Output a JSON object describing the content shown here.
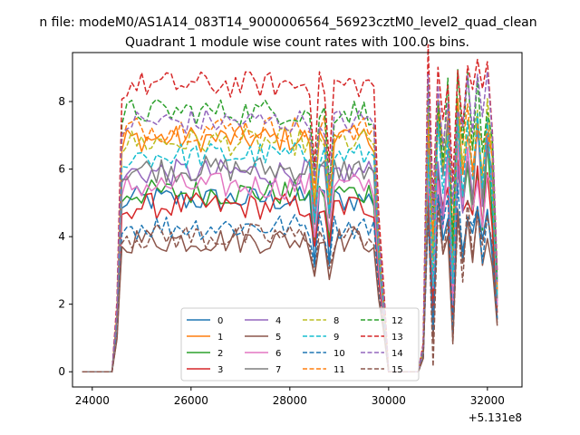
{
  "suptitle": "n file: modeM0/AS1A14_083T14_9000006564_56923cztM0_level2_quad_clean",
  "chart_data": {
    "type": "line",
    "title": "Quadrant 1 module wise count rates with 100.0s bins.",
    "xlabel": "",
    "ylabel": "",
    "x_offset_label": "+5.131e8",
    "xlim": [
      23600,
      32700
    ],
    "ylim": [
      -0.45,
      9.45
    ],
    "xticks": [
      24000,
      26000,
      28000,
      30000,
      32000
    ],
    "xtick_labels": [
      "24000",
      "26000",
      "28000",
      "30000",
      "32000"
    ],
    "yticks": [
      0,
      2,
      4,
      6,
      8
    ],
    "ytick_labels": [
      "0",
      "2",
      "4",
      "6",
      "8"
    ],
    "grid": false,
    "legend_position": "lower-center",
    "legend_columns": 4,
    "series": [
      {
        "name": "0",
        "color": "#1f77b4",
        "dashed": false,
        "level": 5.1,
        "drop": 3.2,
        "burst": 4.5
      },
      {
        "name": "1",
        "color": "#ff7f0e",
        "dashed": false,
        "level": 6.9,
        "drop": 5.0,
        "burst": 6.8
      },
      {
        "name": "2",
        "color": "#2ca02c",
        "dashed": false,
        "level": 5.3,
        "drop": 4.0,
        "burst": 5.5
      },
      {
        "name": "3",
        "color": "#d62728",
        "dashed": false,
        "level": 4.9,
        "drop": 3.6,
        "burst": 5.0
      },
      {
        "name": "4",
        "color": "#9467bd",
        "dashed": false,
        "level": 5.9,
        "drop": 4.4,
        "burst": 6.0
      },
      {
        "name": "5",
        "color": "#8c564b",
        "dashed": false,
        "level": 3.9,
        "drop": 2.9,
        "burst": 3.9
      },
      {
        "name": "6",
        "color": "#e377c2",
        "dashed": false,
        "level": 5.5,
        "drop": 4.1,
        "burst": 5.6
      },
      {
        "name": "7",
        "color": "#7f7f7f",
        "dashed": false,
        "level": 6.0,
        "drop": 4.5,
        "burst": 6.2
      },
      {
        "name": "8",
        "color": "#bcbd22",
        "dashed": true,
        "level": 6.8,
        "drop": 5.0,
        "burst": 6.8
      },
      {
        "name": "9",
        "color": "#17becf",
        "dashed": true,
        "level": 6.4,
        "drop": 4.6,
        "burst": 6.4
      },
      {
        "name": "10",
        "color": "#1f77b4",
        "dashed": true,
        "level": 4.3,
        "drop": 3.3,
        "burst": 4.4
      },
      {
        "name": "11",
        "color": "#ff7f0e",
        "dashed": true,
        "level": 7.2,
        "drop": 5.3,
        "burst": 7.0
      },
      {
        "name": "12",
        "color": "#2ca02c",
        "dashed": true,
        "level": 7.7,
        "drop": 5.7,
        "burst": 7.6
      },
      {
        "name": "13",
        "color": "#d62728",
        "dashed": true,
        "level": 8.5,
        "drop": 6.2,
        "burst": 8.4
      },
      {
        "name": "14",
        "color": "#9467bd",
        "dashed": true,
        "level": 7.4,
        "drop": 5.5,
        "burst": 7.6
      },
      {
        "name": "15",
        "color": "#8c564b",
        "dashed": true,
        "level": 4.0,
        "drop": 2.9,
        "burst": 4.0
      }
    ]
  }
}
